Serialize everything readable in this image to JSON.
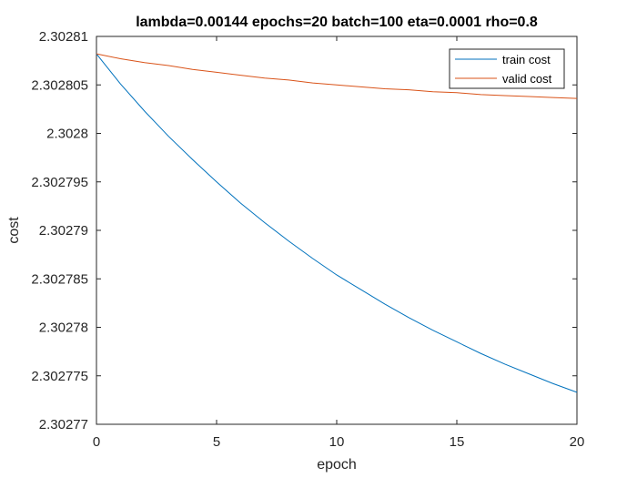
{
  "chart_data": {
    "type": "line",
    "title": "lambda=0.00144 epochs=20 batch=100 eta=0.0001 rho=0.8",
    "xlabel": "epoch",
    "ylabel": "cost",
    "xlim": [
      0,
      20
    ],
    "ylim": [
      2.30277,
      2.30281
    ],
    "xticks": [
      0,
      5,
      10,
      15,
      20
    ],
    "xtick_labels": [
      "0",
      "5",
      "10",
      "15",
      "20"
    ],
    "yticks": [
      2.30277,
      2.302775,
      2.30278,
      2.302785,
      2.30279,
      2.302795,
      2.3028,
      2.302805,
      2.30281
    ],
    "ytick_labels": [
      "2.30277",
      "2.302775",
      "2.30278",
      "2.302785",
      "2.30279",
      "2.302795",
      "2.3028",
      "2.302805",
      "2.30281"
    ],
    "grid": false,
    "legend_position": "top-right",
    "x": [
      0,
      1,
      2,
      3,
      4,
      5,
      6,
      7,
      8,
      9,
      10,
      11,
      12,
      13,
      14,
      15,
      16,
      17,
      18,
      19,
      20
    ],
    "series": [
      {
        "name": "train cost",
        "color": "#0072BD",
        "values": [
          2.3028082,
          2.3028051,
          2.3028023,
          2.3027997,
          2.3027973,
          2.302795,
          2.3027928,
          2.3027908,
          2.3027889,
          2.3027871,
          2.3027854,
          2.3027839,
          2.3027824,
          2.302781,
          2.3027797,
          2.3027785,
          2.3027773,
          2.3027762,
          2.3027752,
          2.3027742,
          2.3027733
        ]
      },
      {
        "name": "valid cost",
        "color": "#D95319",
        "values": [
          2.3028082,
          2.3028077,
          2.3028073,
          2.302807,
          2.3028066,
          2.3028063,
          2.302806,
          2.3028057,
          2.3028055,
          2.3028052,
          2.302805,
          2.3028048,
          2.3028046,
          2.3028045,
          2.3028043,
          2.3028042,
          2.302804,
          2.3028039,
          2.3028038,
          2.3028037,
          2.3028036
        ]
      }
    ]
  }
}
